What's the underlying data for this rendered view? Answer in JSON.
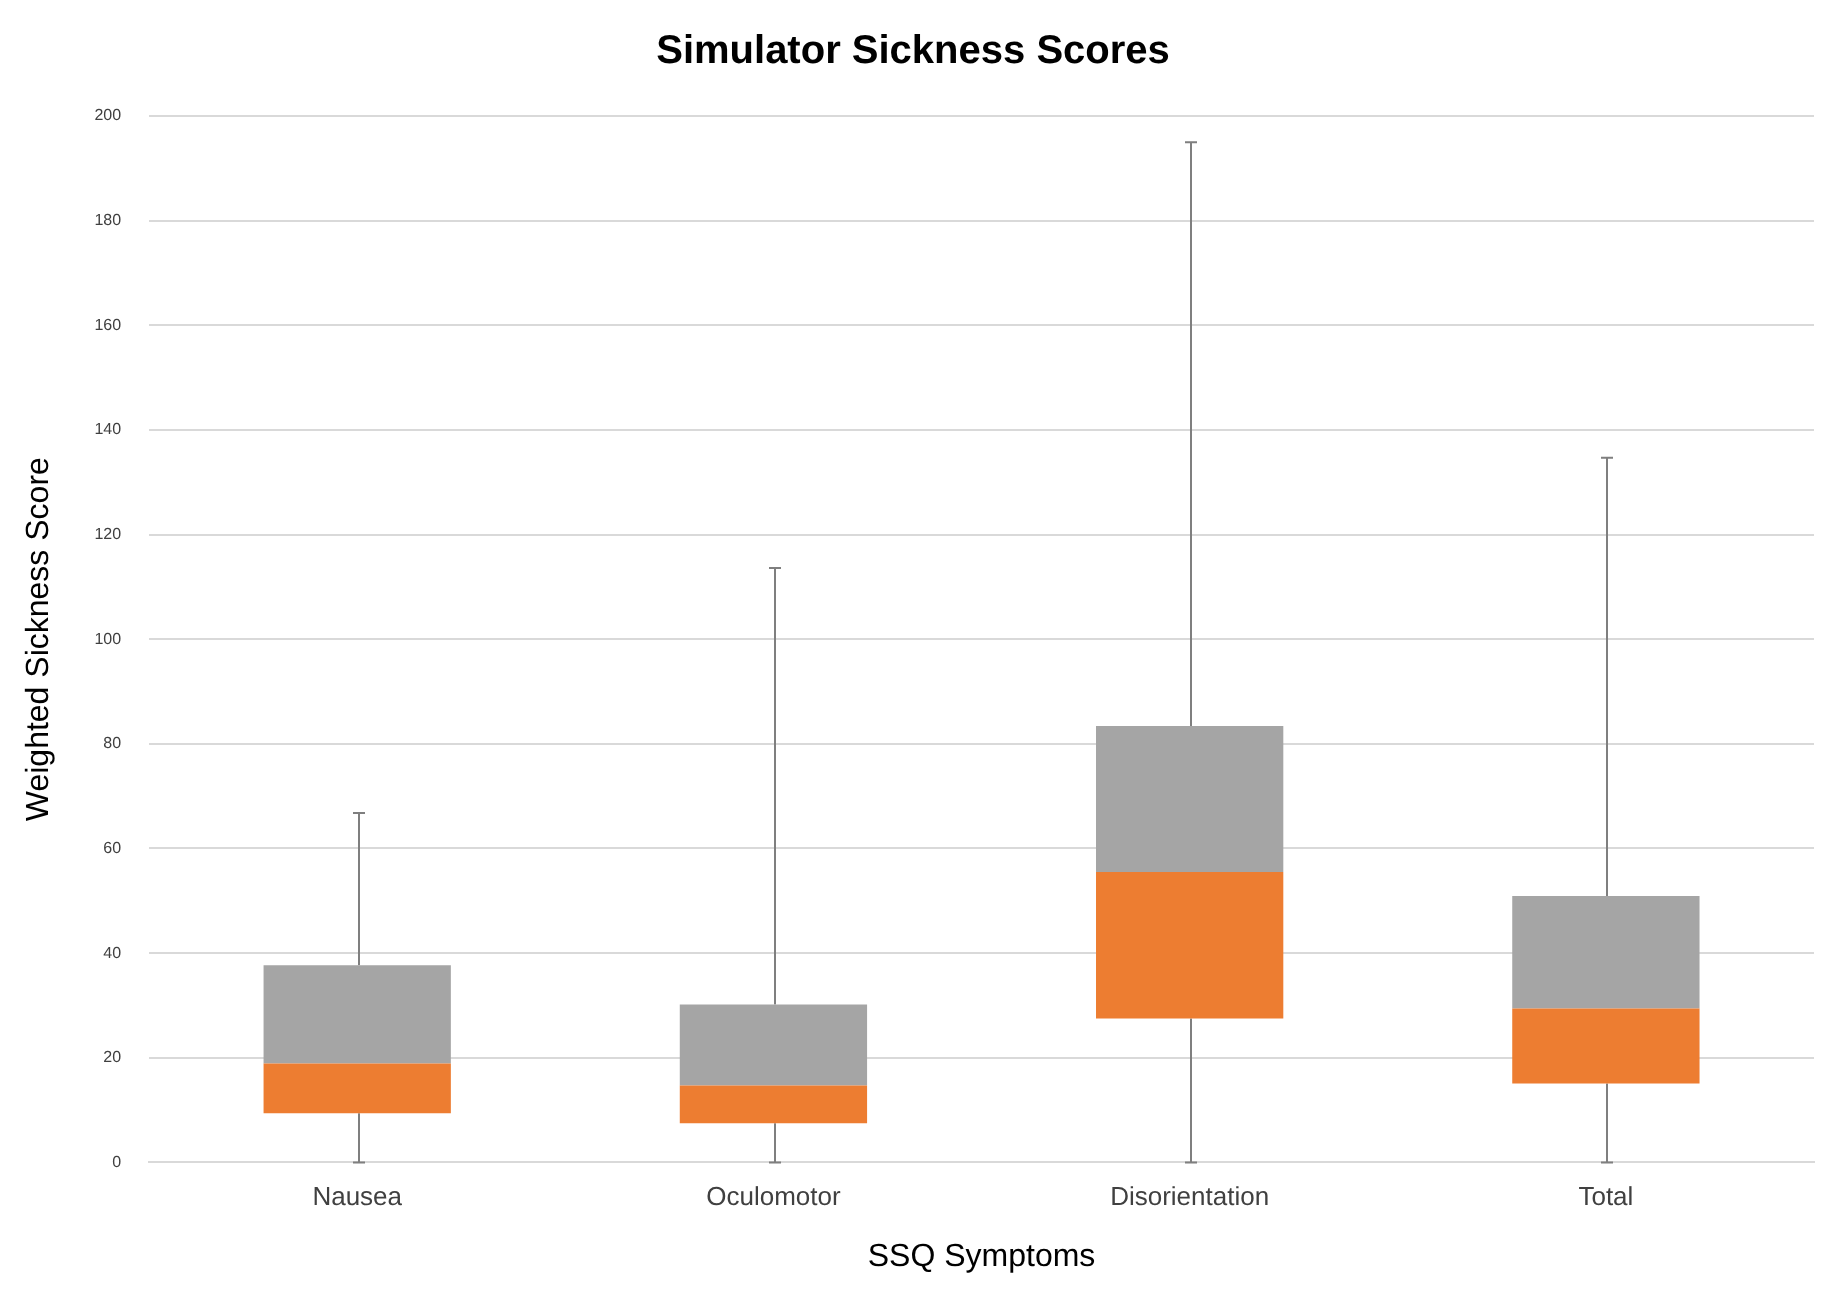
{
  "chart_data": {
    "type": "box",
    "title": "Simulator Sickness Scores",
    "xlabel": "SSQ Symptoms",
    "ylabel": "Weighted Sickness Score",
    "categories": [
      "Nausea",
      "Oculomotor",
      "Disorientation",
      "Total"
    ],
    "colors": [
      [
        "#ed7d31",
        "#a5a5a5"
      ],
      [
        "#ed7d31",
        "#a5a5a5"
      ],
      [
        "#ed7d31",
        "#a5a5a5"
      ],
      [
        "#ed7d31",
        "#a5a5a5"
      ]
    ],
    "boxes": [
      {
        "low": 0,
        "q1": 9.4,
        "median": 18.9,
        "q3": 37.7,
        "high": 66.8
      },
      {
        "low": 0,
        "q1": 7.5,
        "median": 14.7,
        "q3": 30.2,
        "high": 113.6
      },
      {
        "low": 0,
        "q1": 27.5,
        "median": 55.5,
        "q3": 83.4,
        "high": 195
      },
      {
        "low": 0,
        "q1": 15.1,
        "median": 29.4,
        "q3": 50.9,
        "high": 134.7
      }
    ],
    "ylim": [
      0,
      200
    ],
    "yticks": [
      0,
      20,
      40,
      60,
      80,
      100,
      120,
      140,
      160,
      180,
      200
    ],
    "grid": "y"
  }
}
